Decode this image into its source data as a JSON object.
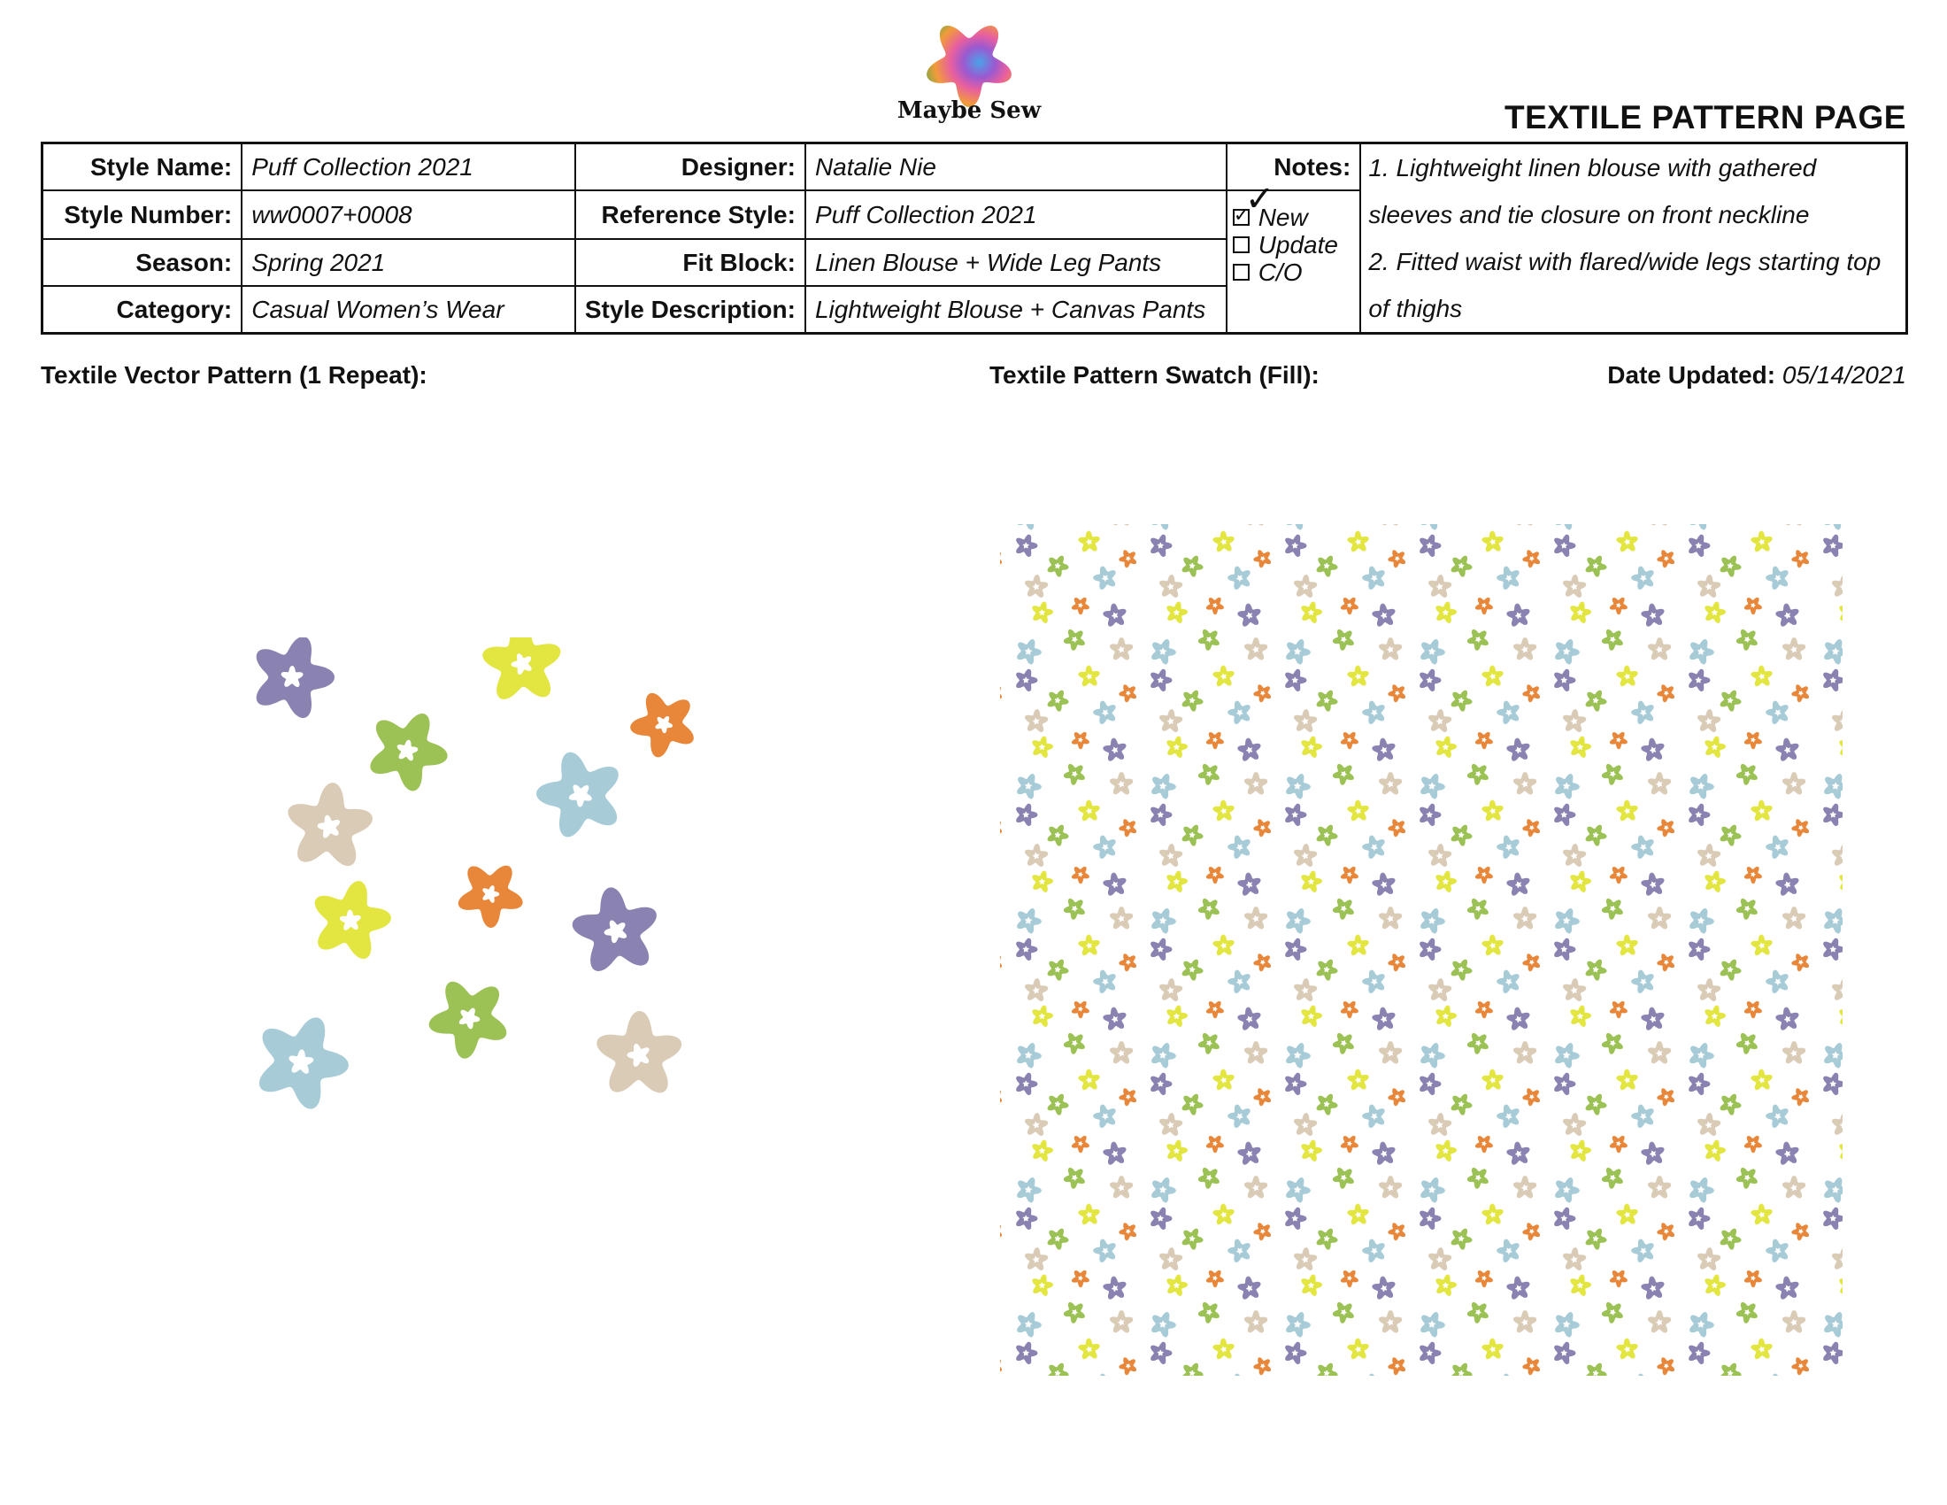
{
  "brand": {
    "name": "Maybe Sew",
    "logo_icon": "gradient-flower-logo",
    "logo_colors": [
      "#3cb043",
      "#f29b3b",
      "#e85fa0",
      "#4aa3e8",
      "#9b59d0"
    ]
  },
  "page_title": "TEXTILE PATTERN PAGE",
  "spec": {
    "style_name_label": "Style Name:",
    "style_name": "Puff Collection 2021",
    "style_number_label": "Style Number:",
    "style_number": "ww0007+0008",
    "season_label": "Season:",
    "season": "Spring 2021",
    "category_label": "Category:",
    "category": "Casual Women’s Wear",
    "designer_label": "Designer:",
    "designer": "Natalie Nie",
    "reference_style_label": "Reference Style:",
    "reference_style": "Puff Collection 2021",
    "fit_block_label": "Fit Block:",
    "fit_block": "Linen Blouse + Wide Leg Pants",
    "style_description_label": "Style Description:",
    "style_description": "Lightweight Blouse + Canvas Pants",
    "notes_label": "Notes:",
    "notes_1": "1. Lightweight linen blouse with gathered sleeves and tie closure on front neckline",
    "notes_2": "2. Fitted waist with flared/wide legs starting top of thighs",
    "status": {
      "new_label": "New",
      "new_checked": true,
      "update_label": "Update",
      "update_checked": false,
      "co_label": "C/O",
      "co_checked": false
    }
  },
  "sections": {
    "vector_label": "Textile Vector Pattern (1 Repeat):",
    "swatch_label": "Textile Pattern Swatch (Fill):",
    "date_label": "Date Updated:",
    "date_value": "05/14/2021"
  },
  "palette": {
    "purple": "#8a82b0",
    "yellow": "#e3e641",
    "orange": "#e8873a",
    "green": "#9cc255",
    "tan": "#dacbb6",
    "blue": "#a7ccd8"
  },
  "repeat_flowers": [
    {
      "color": "purple"
    },
    {
      "color": "yellow"
    },
    {
      "color": "orange"
    },
    {
      "color": "green"
    },
    {
      "color": "tan"
    },
    {
      "color": "blue"
    },
    {
      "color": "orange"
    },
    {
      "color": "yellow"
    },
    {
      "color": "purple"
    },
    {
      "color": "green"
    },
    {
      "color": "blue"
    },
    {
      "color": "tan"
    }
  ]
}
